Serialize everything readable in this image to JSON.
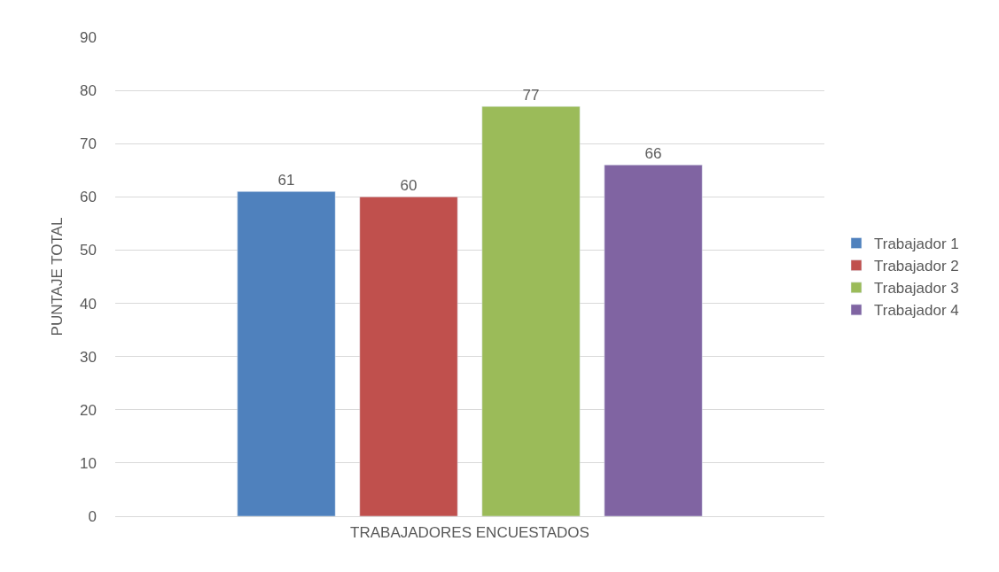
{
  "chart_data": {
    "type": "bar",
    "categories": [
      null
    ],
    "xlabel": "TRABAJADORES ENCUESTADOS",
    "ylabel": "PUNTAJE TOTAL",
    "series": [
      {
        "name": "Trabajador 1",
        "color": "#4f81bd",
        "values": [
          61
        ]
      },
      {
        "name": "Trabajador 2",
        "color": "#c0504d",
        "values": [
          60
        ]
      },
      {
        "name": "Trabajador 3",
        "color": "#9bbb59",
        "values": [
          77
        ]
      },
      {
        "name": "Trabajador 4",
        "color": "#8064a2",
        "values": [
          66
        ]
      }
    ],
    "ylim": [
      0,
      90
    ],
    "yticks": [
      0,
      10,
      20,
      30,
      40,
      50,
      60,
      70,
      80,
      90
    ],
    "grid": "y",
    "legend": "right",
    "data_labels": true
  }
}
